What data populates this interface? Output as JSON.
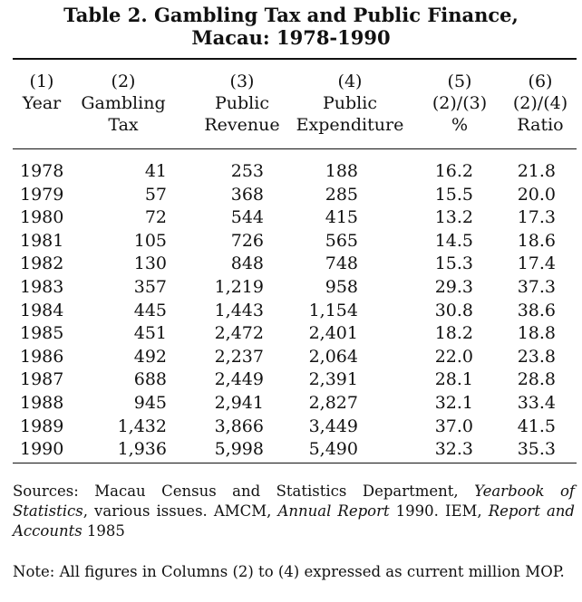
{
  "title": {
    "line1": "Table 2.  Gambling Tax and Public Finance,",
    "line2": "Macau: 1978-1990"
  },
  "columns": [
    {
      "num": "(1)",
      "l1": "Year",
      "l2": ""
    },
    {
      "num": "(2)",
      "l1": "Gambling",
      "l2": "Tax"
    },
    {
      "num": "(3)",
      "l1": "Public",
      "l2": "Revenue"
    },
    {
      "num": "(4)",
      "l1": "Public",
      "l2": "Expenditure"
    },
    {
      "num": "(5)",
      "l1": "(2)/(3)",
      "l2": "%"
    },
    {
      "num": "(6)",
      "l1": "(2)/(4)",
      "l2": "Ratio"
    }
  ],
  "rows": [
    [
      "1978",
      "41",
      "253",
      "188",
      "16.2",
      "21.8"
    ],
    [
      "1979",
      "57",
      "368",
      "285",
      "15.5",
      "20.0"
    ],
    [
      "1980",
      "72",
      "544",
      "415",
      "13.2",
      "17.3"
    ],
    [
      "1981",
      "105",
      "726",
      "565",
      "14.5",
      "18.6"
    ],
    [
      "1982",
      "130",
      "848",
      "748",
      "15.3",
      "17.4"
    ],
    [
      "1983",
      "357",
      "1,219",
      "958",
      "29.3",
      "37.3"
    ],
    [
      "1984",
      "445",
      "1,443",
      "1,154",
      "30.8",
      "38.6"
    ],
    [
      "1985",
      "451",
      "2,472",
      "2,401",
      "18.2",
      "18.8"
    ],
    [
      "1986",
      "492",
      "2,237",
      "2,064",
      "22.0",
      "23.8"
    ],
    [
      "1987",
      "688",
      "2,449",
      "2,391",
      "28.1",
      "28.8"
    ],
    [
      "1988",
      "945",
      "2,941",
      "2,827",
      "32.1",
      "33.4"
    ],
    [
      "1989",
      "1,432",
      "3,866",
      "3,449",
      "37.0",
      "41.5"
    ],
    [
      "1990",
      "1,936",
      "5,998",
      "5,490",
      "32.3",
      "35.3"
    ]
  ],
  "sources": {
    "t1": "Sources: Macau Census and Statistics Department, ",
    "i1": "Yearbook of Statistics",
    "t2": ", various issues. AMCM, ",
    "i2": "Annual Report",
    "t3": " 1990. IEM, ",
    "i3": "Report and Accounts",
    "t4": " 1985"
  },
  "note": "Note: All figures in Columns (2) to (4) expressed as current million MOP."
}
